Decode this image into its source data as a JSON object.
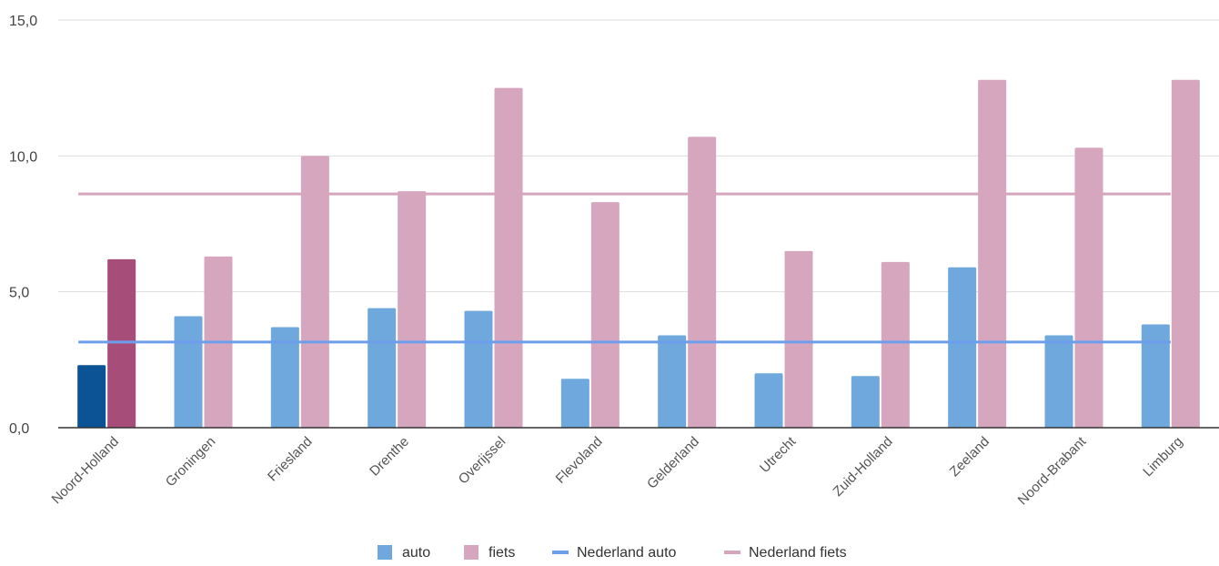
{
  "chart_data": {
    "type": "bar",
    "categories": [
      "Noord-Holland",
      "Groningen",
      "Friesland",
      "Drenthe",
      "Overijssel",
      "Flevoland",
      "Gelderland",
      "Utrecht",
      "Zuid-Holland",
      "Zeeland",
      "Noord-Brabant",
      "Limburg"
    ],
    "series": [
      {
        "name": "auto",
        "values": [
          2.3,
          4.1,
          3.7,
          4.4,
          4.3,
          1.8,
          3.4,
          2.0,
          1.9,
          5.9,
          3.4,
          3.8
        ],
        "color": "#6fa8dc",
        "highlight_color": "#0b5394"
      },
      {
        "name": "fiets",
        "values": [
          6.2,
          6.3,
          10.0,
          8.7,
          12.5,
          8.3,
          10.7,
          6.5,
          6.1,
          12.8,
          10.3,
          12.8
        ],
        "color": "#d5a6bd",
        "highlight_color": "#a64d79"
      }
    ],
    "reference_lines": [
      {
        "name": "Nederland auto",
        "value": 3.15,
        "color": "#6d9eeb"
      },
      {
        "name": "Nederland fiets",
        "value": 8.6,
        "color": "#d5a6bd"
      }
    ],
    "highlight_category": "Noord-Holland",
    "y_ticks": [
      "0,0",
      "5,0",
      "10,0",
      "15,0"
    ],
    "y_tick_values": [
      0,
      5,
      10,
      15
    ],
    "ylim": [
      0,
      15
    ],
    "grid": true,
    "legend_position": "bottom"
  }
}
